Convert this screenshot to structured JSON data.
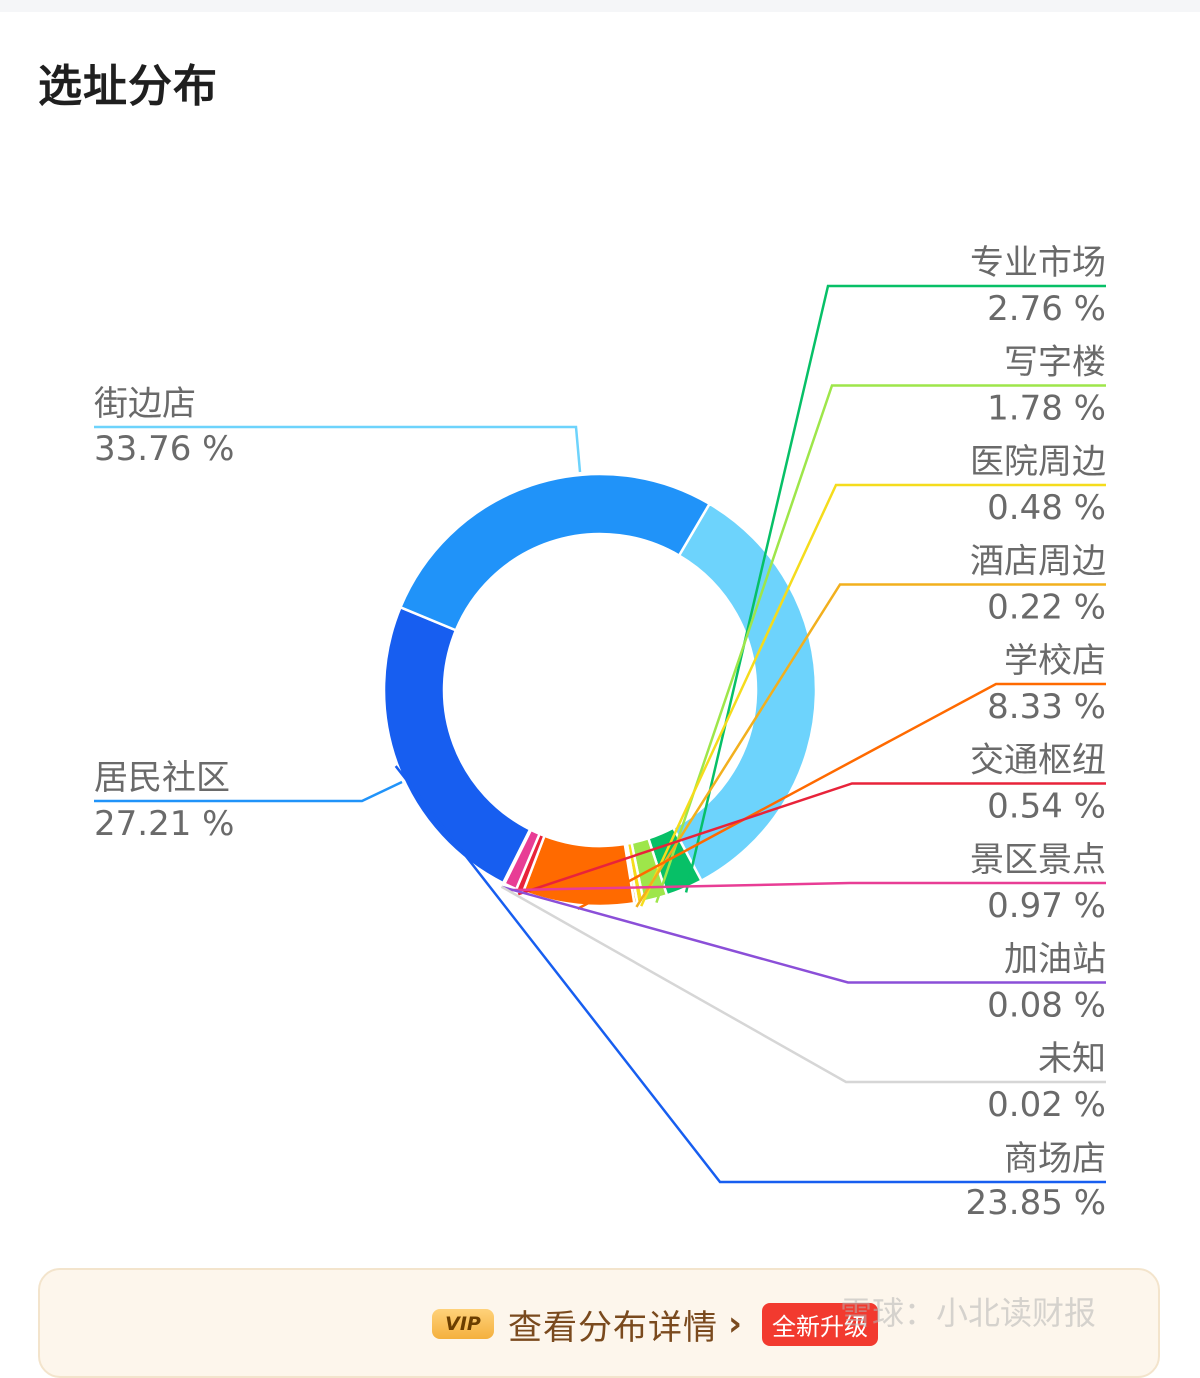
{
  "page": {
    "title": "选址分布"
  },
  "chart_data": {
    "type": "pie",
    "variant": "donut",
    "title": "",
    "slices": [
      {
        "label": "街边店",
        "value": 33.76,
        "percent_text": "33.76 %",
        "color": "#6dd3fc"
      },
      {
        "label": "专业市场",
        "value": 2.76,
        "percent_text": "2.76 %",
        "color": "#07c067"
      },
      {
        "label": "写字楼",
        "value": 1.78,
        "percent_text": "1.78 %",
        "color": "#9ee64a"
      },
      {
        "label": "医院周边",
        "value": 0.48,
        "percent_text": "0.48 %",
        "color": "#f5dc1c"
      },
      {
        "label": "酒店周边",
        "value": 0.22,
        "percent_text": "0.22 %",
        "color": "#f2b01e"
      },
      {
        "label": "学校店",
        "value": 8.33,
        "percent_text": "8.33 %",
        "color": "#ff6a00"
      },
      {
        "label": "交通枢纽",
        "value": 0.54,
        "percent_text": "0.54 %",
        "color": "#e8233a"
      },
      {
        "label": "景区景点",
        "value": 0.97,
        "percent_text": "0.97 %",
        "color": "#e83d95"
      },
      {
        "label": "加油站",
        "value": 0.08,
        "percent_text": "0.08 %",
        "color": "#8b4fd8"
      },
      {
        "label": "未知",
        "value": 0.02,
        "percent_text": "0.02 %",
        "color": "#d6d6d6"
      },
      {
        "label": "商场店",
        "value": 23.85,
        "percent_text": "23.85 %",
        "color": "#175ef0"
      },
      {
        "label": "居民社区",
        "value": 27.21,
        "percent_text": "27.21 %",
        "color": "#2093f9"
      }
    ]
  },
  "cta": {
    "vip": "VIP",
    "label": "查看分布详情",
    "chevron": "›",
    "badge": "全新升级"
  },
  "watermark": "雪球：小北读财报"
}
